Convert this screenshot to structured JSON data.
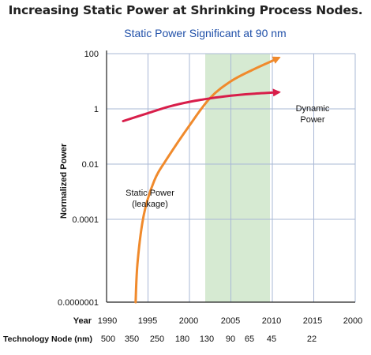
{
  "header": {
    "title": "Increasing Static Power at Shrinking Process Nodes.",
    "subtitle": "Static Power Significant at 90 nm"
  },
  "colors": {
    "static": "#f08a2c",
    "dynamic": "#d81e4a",
    "band": "#d6ead2",
    "grid": "#a9b8d6"
  },
  "chart_data": {
    "type": "line",
    "title": "Increasing Static Power at Shrinking Process Nodes.",
    "subtitle": "Static Power Significant at 90 nm",
    "ylabel": "Normalized Power",
    "y_scale": "log",
    "ylim": [
      1e-07,
      100
    ],
    "xlim": [
      1990,
      2000
    ],
    "y_ticks": [
      {
        "value": 100,
        "label": "100"
      },
      {
        "value": 1,
        "label": "1"
      },
      {
        "value": 0.01,
        "label": "0.01"
      },
      {
        "value": 0.0001,
        "label": "0.0001"
      },
      {
        "value": 1e-07,
        "label": "0.0000001"
      }
    ],
    "x_axis_title": "Year",
    "x_ticks": [
      "1990",
      "1995",
      "2000",
      "2005",
      "2010",
      "2015",
      "2000"
    ],
    "node_axis_title": "Technology Node (nm)",
    "nodes": [
      "500",
      "350",
      "250",
      "180",
      "130",
      "90",
      "65",
      "45",
      "22"
    ],
    "highlight_band": {
      "from_node": "130",
      "to_node": "45"
    },
    "grid": true,
    "series": [
      {
        "name": "Static Power\n(leakage)",
        "label_lines": [
          "Static Power",
          "(leakage)"
        ],
        "color": "#f08a2c",
        "points": [
          [
            0.7,
            1e-07
          ],
          [
            0.75,
            3e-06
          ],
          [
            0.9,
            0.00015
          ],
          [
            1.15,
            0.0025
          ],
          [
            1.45,
            0.015
          ],
          [
            2.0,
            0.25
          ],
          [
            2.5,
            2.5
          ],
          [
            3.0,
            10
          ],
          [
            3.5,
            25
          ],
          [
            4.0,
            55
          ],
          [
            4.15,
            70
          ]
        ]
      },
      {
        "name": "Dynamic\nPower",
        "label_lines": [
          "Dynamic",
          "Power"
        ],
        "color": "#d81e4a",
        "points": [
          [
            0.4,
            0.36
          ],
          [
            1.0,
            0.7
          ],
          [
            1.5,
            1.2
          ],
          [
            2.0,
            1.8
          ],
          [
            2.5,
            2.4
          ],
          [
            3.0,
            3.0
          ],
          [
            3.5,
            3.5
          ],
          [
            4.15,
            4.0
          ]
        ]
      }
    ]
  }
}
